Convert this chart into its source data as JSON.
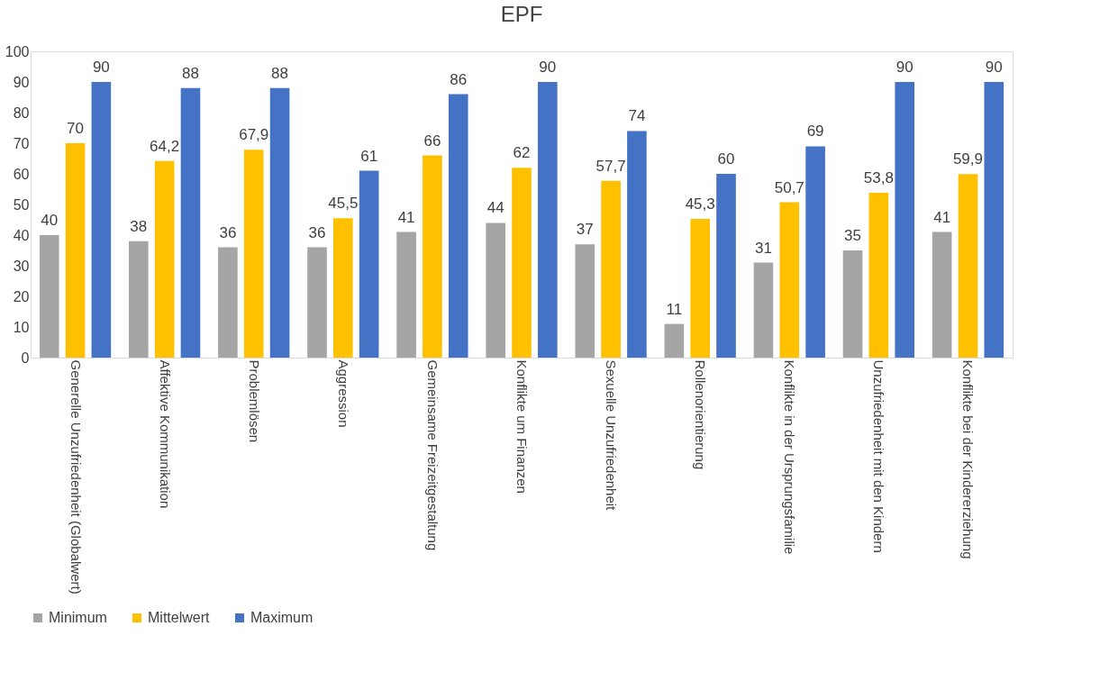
{
  "chart_data": {
    "type": "bar",
    "title": "EPF",
    "categories": [
      "Generelle Unzufriedenheit (Globalwert)",
      "Affektive Kommunikation",
      "Problemlösen",
      "Aggression",
      "Gemeinsame Freizeitgestaltung",
      "Konflikte um Finanzen",
      "Sexuelle Unzufriedenheit",
      "Rollenorientierung",
      "Konflikte in der Ursprungsfamilie",
      "Unzufriedenheit mit den Kindern",
      "Konflikte bei der Kindererziehung"
    ],
    "series": [
      {
        "name": "Minimum",
        "color": "#a5a5a5",
        "values": [
          40,
          38,
          36,
          36,
          41,
          44,
          37,
          11,
          31,
          35,
          41
        ],
        "value_labels": [
          "40",
          "38",
          "36",
          "36",
          "41",
          "44",
          "37",
          "11",
          "31",
          "35",
          "41"
        ]
      },
      {
        "name": "Mittelwert",
        "color": "#ffc000",
        "values": [
          70,
          64.2,
          67.9,
          45.5,
          66,
          62,
          57.7,
          45.3,
          50.7,
          53.8,
          59.9
        ],
        "value_labels": [
          "70",
          "64,2",
          "67,9",
          "45,5",
          "66",
          "62",
          "57,7",
          "45,3",
          "50,7",
          "53,8",
          "59,9"
        ]
      },
      {
        "name": "Maximum",
        "color": "#4472c4",
        "values": [
          90,
          88,
          88,
          61,
          86,
          90,
          74,
          60,
          69,
          90,
          90
        ],
        "value_labels": [
          "90",
          "88",
          "88",
          "61",
          "86",
          "90",
          "74",
          "60",
          "69",
          "90",
          "90"
        ]
      }
    ],
    "ylim": [
      0,
      100
    ],
    "yticks": [
      0,
      10,
      20,
      30,
      40,
      50,
      60,
      70,
      80,
      90,
      100
    ],
    "grid": false,
    "legend": "bottom"
  }
}
